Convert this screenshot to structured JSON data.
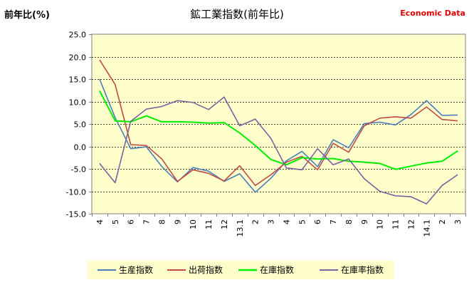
{
  "chart_data": {
    "type": "line",
    "title": "鉱工業指数(前年比)",
    "ylabel": "前年比(%)",
    "brand": "Economic Data",
    "ylim": [
      -15,
      25
    ],
    "ytick_step": 5,
    "grid": true,
    "legend_position": "bottom",
    "colors": {
      "plot_bg": "#ffffcc",
      "legend_bg": "#ffffcc",
      "grid": "#000000"
    },
    "categories": [
      "4",
      "5",
      "6",
      "7",
      "8",
      "9",
      "10",
      "11",
      "12",
      "13.1",
      "2",
      "3",
      "4",
      "5",
      "6",
      "7",
      "8",
      "9",
      "10",
      "11",
      "12",
      "14.1",
      "2",
      "3"
    ],
    "series": [
      {
        "name": "生産指数",
        "color": "#4a7ebb",
        "values": [
          15.0,
          6.4,
          -0.5,
          -0.1,
          -4.5,
          -7.9,
          -4.7,
          -5.5,
          -7.8,
          -6.1,
          -10.2,
          -7.1,
          -3.2,
          -1.1,
          -4.5,
          1.5,
          -0.3,
          5.1,
          5.4,
          4.8,
          7.1,
          10.2,
          6.9,
          7.0
        ]
      },
      {
        "name": "出荷指数",
        "color": "#be4b48",
        "values": [
          19.3,
          13.8,
          0.4,
          0.2,
          -2.8,
          -7.8,
          -5.2,
          -6.0,
          -7.7,
          -4.3,
          -8.7,
          -6.3,
          -3.5,
          -2.2,
          -5.2,
          0.7,
          -1.3,
          4.6,
          6.3,
          6.6,
          6.3,
          8.8,
          6.0,
          5.7
        ]
      },
      {
        "name": "在庫指数",
        "color": "#00ee00",
        "values": [
          12.4,
          5.7,
          5.5,
          6.8,
          5.5,
          5.5,
          5.4,
          5.2,
          5.3,
          3.0,
          0.2,
          -2.9,
          -4.1,
          -2.5,
          -2.8,
          -2.7,
          -3.3,
          -3.5,
          -3.8,
          -5.1,
          -4.4,
          -3.7,
          -3.3,
          -1.0
        ]
      },
      {
        "name": "在庫率指数",
        "color": "#7d60a0",
        "values": [
          -3.8,
          -8.1,
          5.6,
          8.3,
          8.9,
          10.2,
          9.8,
          8.2,
          11.0,
          4.6,
          6.1,
          1.8,
          -4.8,
          -5.2,
          -0.5,
          -4.1,
          -2.8,
          -7.2,
          -10.0,
          -11.0,
          -11.2,
          -12.8,
          -8.7,
          -6.3
        ]
      }
    ]
  }
}
